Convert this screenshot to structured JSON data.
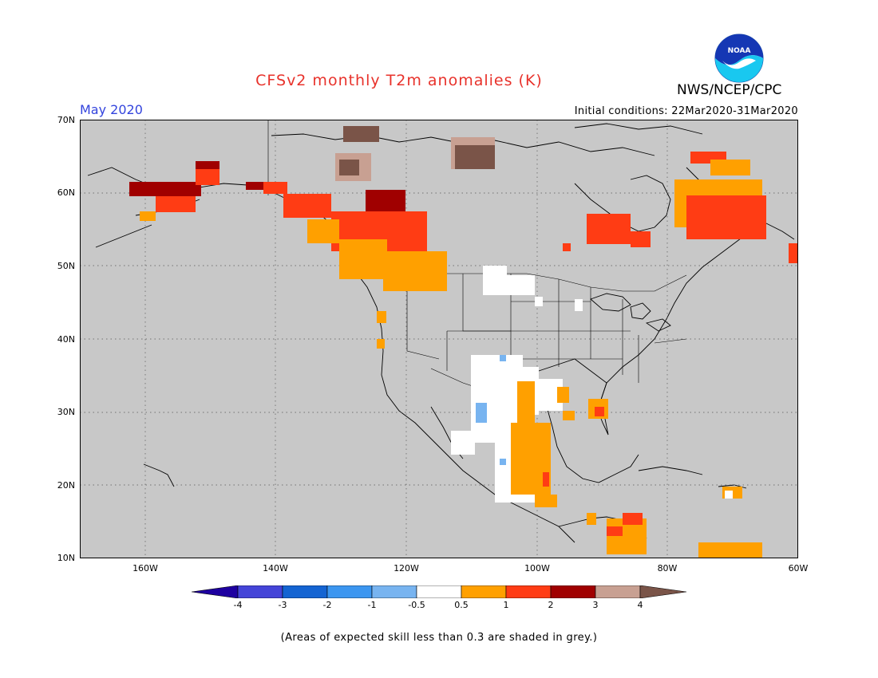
{
  "header": {
    "title": "CFSv2 monthly T2m anomalies (K)",
    "org": "NWS/NCEP/CPC",
    "logo_text": "NOAA",
    "month_label": "May 2020",
    "initial_conditions": "Initial conditions: 22Mar2020-31Mar2020"
  },
  "map": {
    "lon_range": [
      -170,
      -60
    ],
    "lat_range": [
      10,
      70
    ],
    "lat_ticks": [
      "70N",
      "60N",
      "50N",
      "40N",
      "30N",
      "20N",
      "10N"
    ],
    "lon_ticks": [
      "160W",
      "140W",
      "120W",
      "100W",
      "80W",
      "60W"
    ],
    "background_color": "#c8c8c8",
    "anomaly_regions": [
      {
        "name": "alaska-west",
        "category": "2 to 3",
        "color": "#a00000"
      },
      {
        "name": "alaska-south",
        "category": "1 to 2",
        "color": "#ff3c14"
      },
      {
        "name": "pacific-northwest-coast",
        "category": "0.5 to 1",
        "color": "#ffa000"
      },
      {
        "name": "western-canada",
        "category": "1 to 2",
        "color": "#ff3c14"
      },
      {
        "name": "yukon-interior",
        "category": "2 to 3",
        "color": "#a00000"
      },
      {
        "name": "arctic-islands",
        "category": "3 to 4",
        "color": "#c8a092"
      },
      {
        "name": "hudson-bay",
        "category": "1 to 2",
        "color": "#ff3c14"
      },
      {
        "name": "quebec-labrador",
        "category": "1 to 2",
        "color": "#ff3c14"
      },
      {
        "name": "southwest-us",
        "category": "-0.5 to 0.5",
        "color": "#ffffff"
      },
      {
        "name": "mexico-texas",
        "category": "0.5 to 1",
        "color": "#ffa000"
      },
      {
        "name": "central-america",
        "category": "0.5 to 1",
        "color": "#ffa000"
      },
      {
        "name": "caribbean",
        "category": "0.5 to 1",
        "color": "#ffa000"
      }
    ]
  },
  "colorbar": {
    "labels": [
      "-4",
      "-3",
      "-2",
      "-1",
      "-0.5",
      "0.5",
      "1",
      "2",
      "3",
      "4"
    ],
    "colors": [
      "#1e00a0",
      "#4444d8",
      "#1464d2",
      "#3c96f0",
      "#78b4f0",
      "#ffffff",
      "#ffa000",
      "#ff3c14",
      "#a00000",
      "#c8a092",
      "#7a5448"
    ]
  },
  "footer": {
    "note": "(Areas of expected skill less than 0.3 are shaded in grey.)"
  }
}
